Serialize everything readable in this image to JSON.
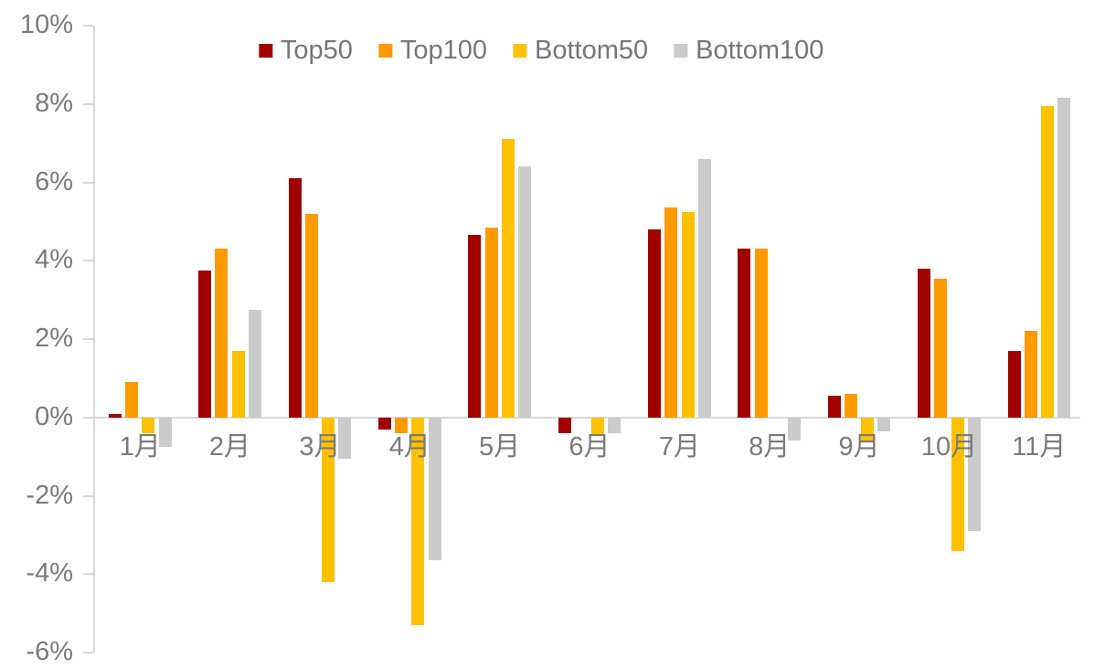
{
  "chart_data": {
    "type": "bar",
    "title": "",
    "xlabel": "",
    "ylabel": "",
    "categories": [
      "1月",
      "2月",
      "3月",
      "4月",
      "5月",
      "6月",
      "7月",
      "8月",
      "9月",
      "10月",
      "11月"
    ],
    "series": [
      {
        "name": "Top50",
        "color": "#A00000",
        "values": [
          0.1,
          3.75,
          6.1,
          -0.3,
          4.65,
          -0.4,
          4.8,
          4.3,
          0.55,
          3.8,
          1.7
        ]
      },
      {
        "name": "Top100",
        "color": "#FF9900",
        "values": [
          0.9,
          4.3,
          5.2,
          -0.4,
          4.85,
          0.0,
          5.35,
          4.3,
          0.6,
          3.55,
          2.2
        ]
      },
      {
        "name": "Bottom50",
        "color": "#FFC000",
        "values": [
          -0.4,
          1.7,
          -4.2,
          -5.3,
          7.1,
          -0.45,
          5.25,
          0.0,
          -0.6,
          -3.4,
          7.95
        ]
      },
      {
        "name": "Bottom100",
        "color": "#CBCBCB",
        "values": [
          -0.75,
          2.75,
          -1.05,
          -3.65,
          6.4,
          -0.4,
          6.6,
          -0.6,
          -0.35,
          -2.9,
          8.15
        ]
      }
    ],
    "ylim": [
      -6,
      10
    ],
    "y_tick_step": 2,
    "y_tick_labels": [
      "10%",
      "8%",
      "6%",
      "4%",
      "2%",
      "0%",
      "-2%",
      "-4%",
      "-6%"
    ],
    "value_format": "percent",
    "grid": false,
    "legend_position": "top-center",
    "axis_color": "#D9D9D9",
    "label_color": "#7F7F7F"
  }
}
